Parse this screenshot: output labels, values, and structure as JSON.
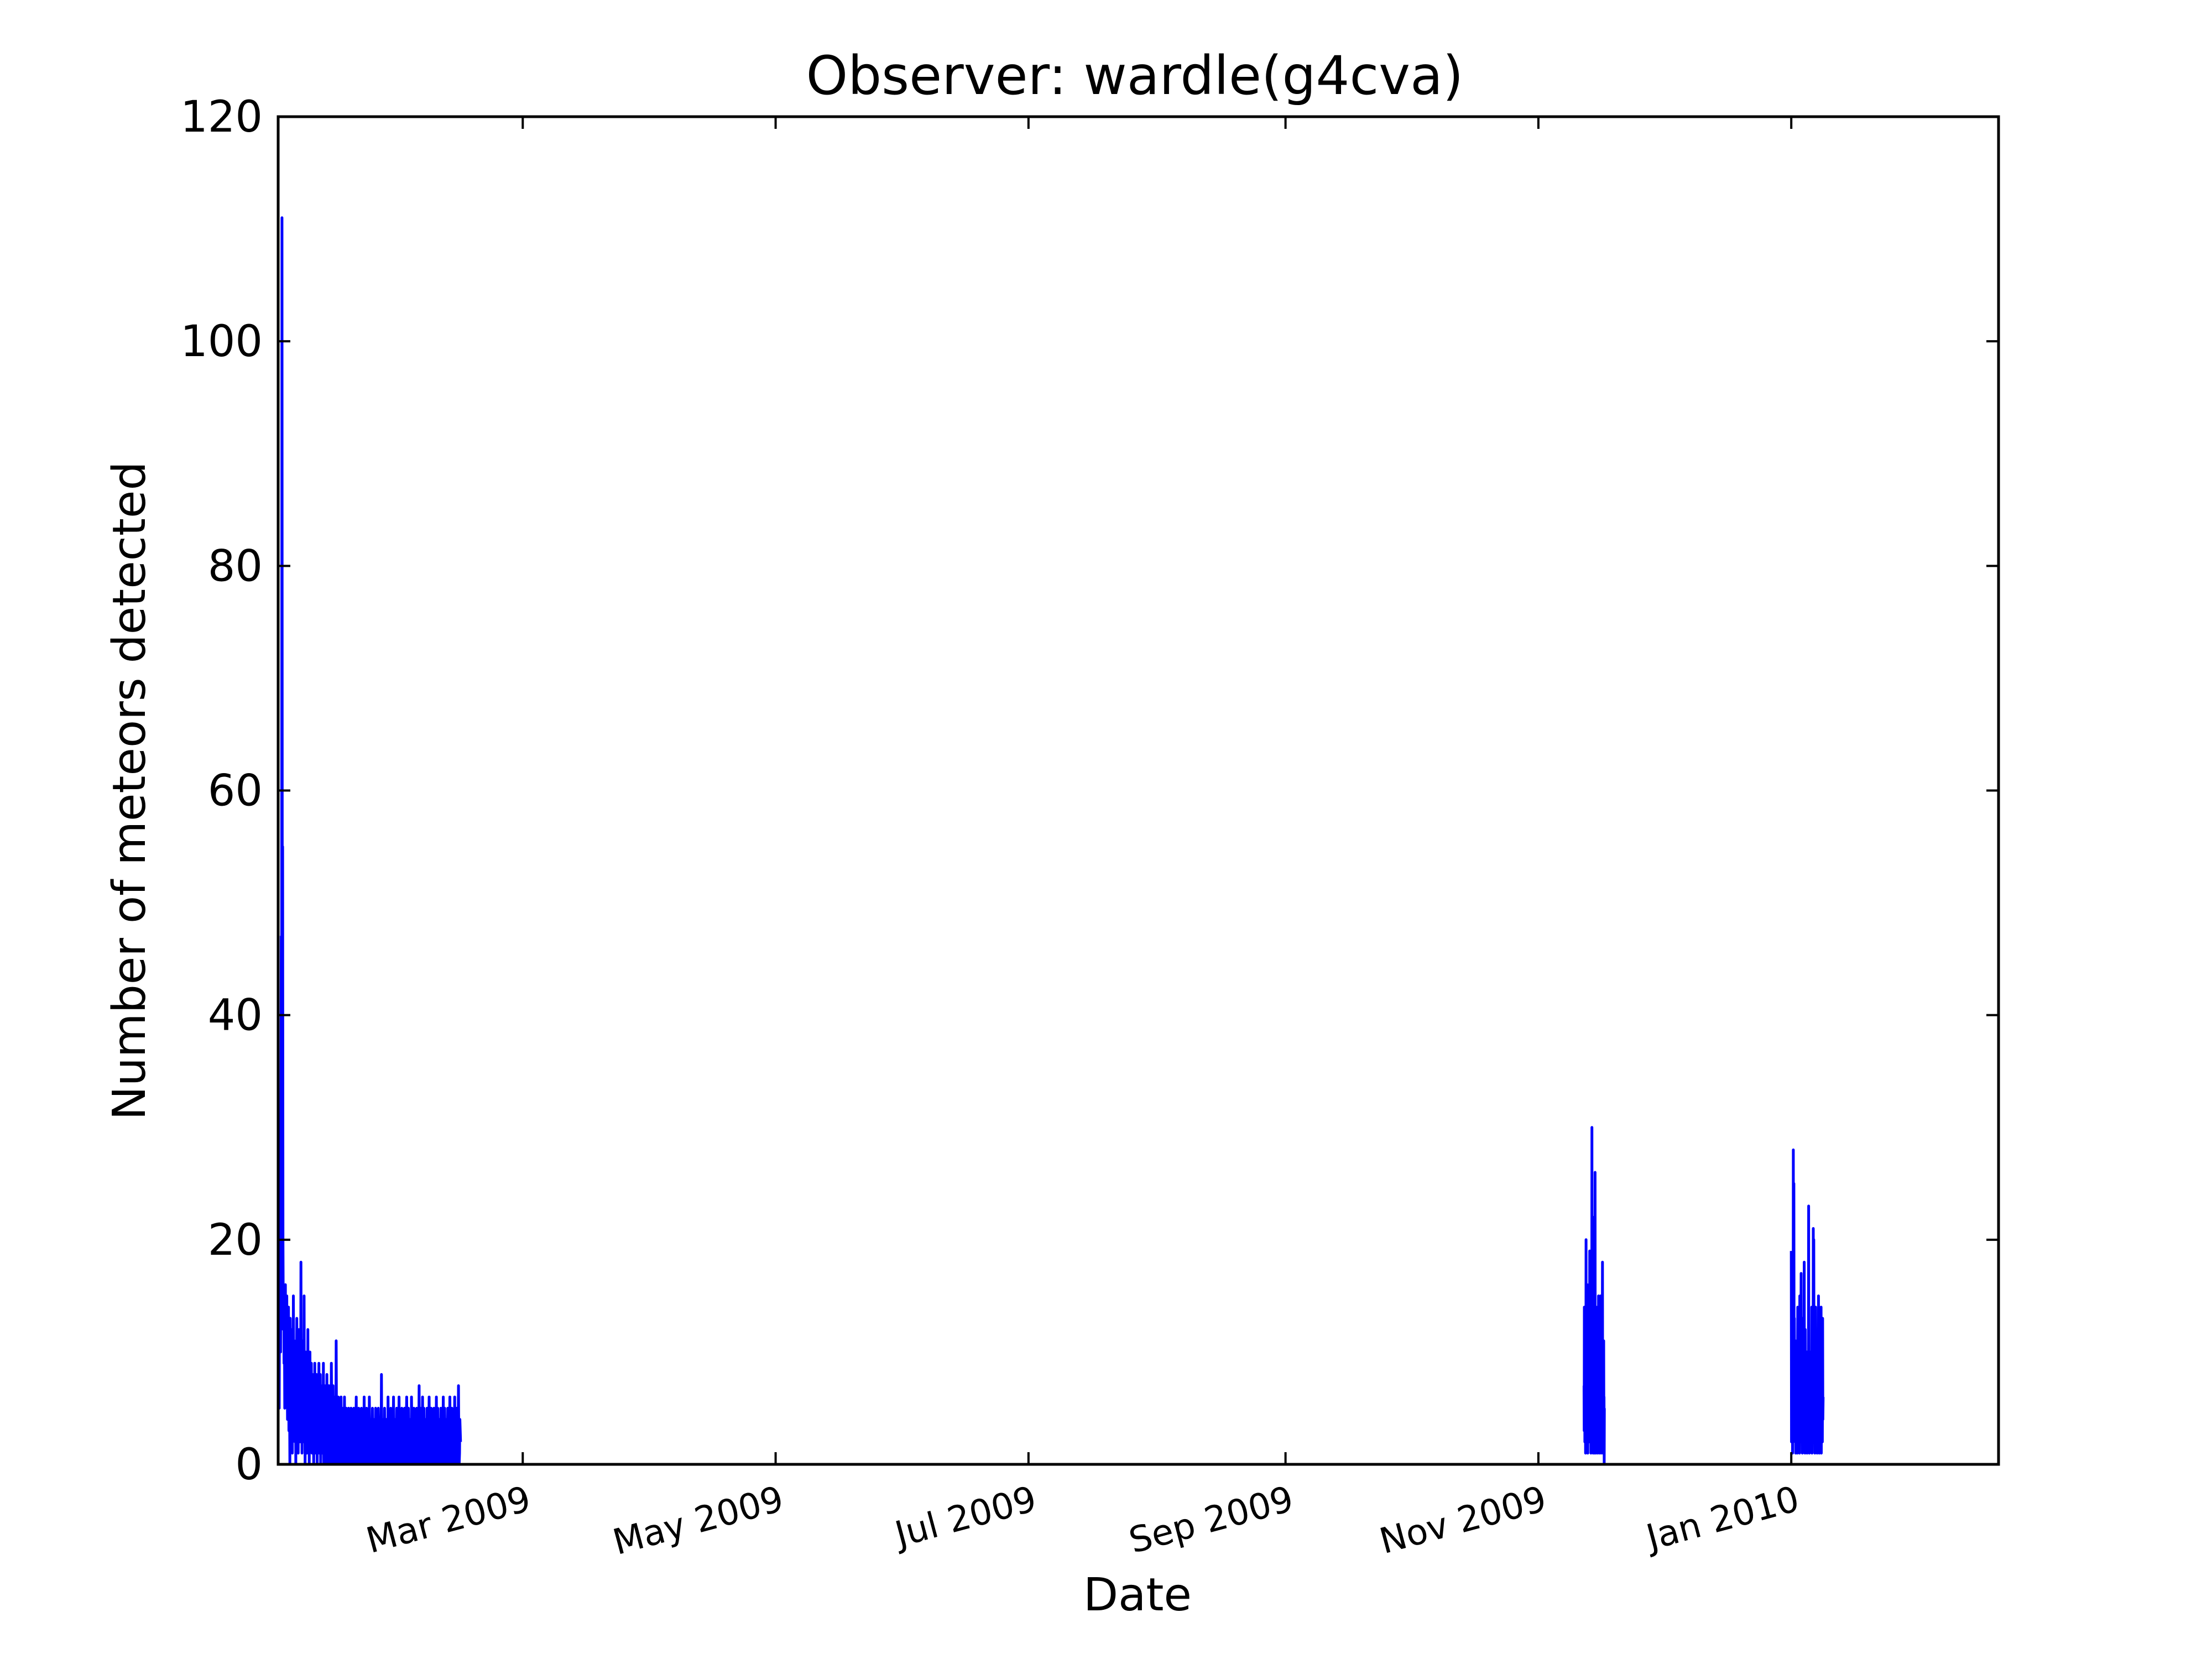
{
  "chart_data": {
    "type": "line",
    "title": "Observer: wardle(g4cva)",
    "xlabel": "Date",
    "ylabel": "Number of meteors detected",
    "x_is_date": true,
    "xlim": [
      "2009-01-01",
      "2010-02-20"
    ],
    "ylim": [
      0,
      120
    ],
    "yticks": [
      0,
      20,
      40,
      60,
      80,
      100,
      120
    ],
    "xticks": [
      {
        "date": "2009-03-01",
        "label": "Mar 2009"
      },
      {
        "date": "2009-05-01",
        "label": "May 2009"
      },
      {
        "date": "2009-07-01",
        "label": "Jul 2009"
      },
      {
        "date": "2009-09-01",
        "label": "Sep 2009"
      },
      {
        "date": "2009-11-01",
        "label": "Nov 2009"
      },
      {
        "date": "2010-01-01",
        "label": "Jan 2010"
      }
    ],
    "grid": false,
    "legend": "none",
    "series": [
      {
        "color": "#0000ff",
        "segments": [
          {
            "start": "2009-01-01",
            "interval_hours": 2,
            "values": [
              24,
              20,
              15,
              5,
              16,
              22,
              18,
              10,
              30,
              47,
              25,
              111,
              42,
              55,
              20,
              12,
              16,
              9,
              14,
              5,
              11,
              16,
              8,
              13,
              6,
              15,
              9,
              4,
              11,
              7,
              14,
              3,
              10,
              6,
              0,
              13,
              8,
              2,
              9,
              5,
              12,
              1,
              7,
              4,
              15,
              9,
              3,
              11,
              6,
              2,
              10,
              0,
              8,
              5,
              13,
              7,
              3,
              9,
              1,
              6,
              12,
              4,
              8,
              2,
              10,
              5,
              18,
              3,
              7,
              1,
              11,
              6,
              4,
              9,
              2,
              15,
              5,
              8,
              0,
              6,
              10,
              3,
              7,
              1,
              9,
              4,
              12,
              2,
              6,
              8,
              0,
              5,
              10,
              3,
              7,
              2,
              9,
              4,
              1,
              6,
              8,
              3,
              5,
              0,
              7,
              2,
              9,
              4,
              6,
              1,
              3,
              8,
              5,
              0,
              7,
              4,
              2,
              6,
              9,
              1,
              5,
              3,
              8,
              0,
              4,
              7,
              2,
              5,
              1,
              6,
              3,
              9,
              0,
              4,
              2,
              7,
              5,
              1,
              3,
              6,
              0,
              8,
              2,
              4,
              1,
              5,
              3,
              7,
              0,
              2,
              6,
              4,
              1,
              3,
              9,
              5,
              0,
              2,
              4,
              7,
              1,
              3,
              5,
              0,
              6,
              2,
              4,
              1,
              11,
              3,
              5,
              0,
              2,
              4,
              6,
              1,
              3,
              0,
              5,
              2,
              4,
              1,
              6,
              3,
              0,
              2,
              5,
              1,
              4,
              3,
              0,
              2,
              6,
              1,
              4,
              0,
              3,
              5,
              2,
              1,
              4,
              0,
              3,
              2,
              5,
              1,
              0,
              3,
              4,
              2,
              1,
              5,
              0,
              3,
              2,
              4,
              1,
              0,
              3,
              5,
              2,
              1,
              4,
              0,
              2,
              3,
              6,
              1,
              0,
              4,
              2,
              3,
              1,
              5,
              0,
              2,
              4,
              3,
              1,
              0,
              2,
              5,
              3,
              1,
              4,
              0,
              2,
              3,
              1,
              6,
              0,
              2,
              4,
              1,
              3,
              0,
              5,
              2,
              1,
              3,
              4,
              0,
              2,
              1,
              6,
              3,
              0,
              2,
              4,
              1,
              3,
              0,
              2,
              5,
              1,
              3,
              0,
              4,
              2,
              1,
              3,
              0,
              5,
              2,
              1,
              4,
              3,
              0,
              2,
              1,
              5,
              3,
              0,
              2,
              4,
              1,
              3,
              0,
              2,
              8,
              1,
              3,
              0,
              2,
              4,
              1,
              3,
              0,
              5,
              2,
              1,
              3,
              0,
              4,
              2,
              1,
              3,
              0,
              6,
              2,
              1,
              4,
              0,
              3,
              2,
              1,
              5,
              0,
              3,
              2,
              4,
              1,
              0,
              3,
              6,
              2,
              1,
              0,
              4,
              3,
              1,
              2,
              0,
              5,
              3,
              1,
              2,
              0,
              4,
              3,
              6,
              2,
              0,
              1,
              4,
              3,
              0,
              2,
              5,
              1,
              0,
              3,
              4,
              2,
              1,
              0,
              5,
              3,
              2,
              1,
              0,
              4,
              6,
              2,
              1,
              0,
              3,
              5,
              2,
              1,
              0,
              4,
              3,
              2,
              1,
              0,
              6,
              3,
              2,
              1,
              0,
              4,
              2,
              5,
              1,
              0,
              3,
              2,
              4,
              1,
              0,
              5,
              3,
              2,
              1,
              0,
              4,
              3,
              7,
              1,
              0,
              2,
              5,
              3,
              1,
              0,
              4,
              2,
              6,
              1,
              0,
              3,
              5,
              2,
              1,
              0,
              4,
              3,
              2,
              1,
              0,
              5,
              2,
              4,
              1,
              0,
              3,
              6,
              2,
              1,
              0,
              4,
              3,
              5,
              1,
              0,
              2,
              3,
              4,
              1,
              0,
              5,
              2,
              3,
              1,
              0,
              4,
              2,
              6,
              1,
              0,
              3,
              5,
              2,
              1,
              0,
              4,
              3,
              2,
              0,
              1,
              5,
              3,
              2,
              0,
              1,
              4,
              3,
              6,
              0,
              1,
              2,
              5,
              3,
              0,
              1,
              4,
              2,
              3,
              0,
              1,
              5,
              2,
              4,
              0,
              1,
              3,
              6,
              2,
              0,
              1,
              4,
              3,
              5,
              0,
              1,
              2,
              3,
              4,
              0,
              1,
              6,
              2,
              3,
              0,
              1,
              4,
              5,
              2,
              0,
              1,
              3,
              7,
              2,
              0,
              1,
              4,
              3,
              2
            ]
          },
          {
            "start": "2009-11-12",
            "interval_hours": 1,
            "values": [
              7,
              3,
              14,
              5,
              11,
              2,
              9,
              4,
              8,
              1,
              12,
              6,
              20,
              3,
              10,
              5,
              15,
              2,
              8,
              16,
              4,
              11,
              1,
              9,
              6,
              13,
              3,
              7,
              10,
              2,
              5,
              14,
              8,
              19,
              4,
              11,
              2,
              16,
              6,
              9,
              1,
              19,
              5,
              12,
              3,
              8,
              30,
              2,
              10,
              4,
              20,
              7,
              13,
              1,
              9,
              5,
              22,
              3,
              11,
              6,
              8,
              1,
              14,
              4,
              26,
              2,
              10,
              5,
              12,
              1,
              9,
              3,
              14,
              6,
              8,
              2,
              11,
              4,
              7,
              1,
              13,
              5,
              9,
              3,
              15,
              2,
              8,
              6,
              11,
              1,
              10,
              4,
              12,
              3,
              7,
              2,
              15,
              5,
              9,
              1,
              11,
              4,
              8,
              2,
              6,
              3,
              13,
              18,
              5,
              1,
              10,
              3,
              7,
              2,
              11,
              4,
              6,
              0,
              5
            ]
          },
          {
            "start": "2010-01-01",
            "interval_hours": 1.5,
            "values": [
              19,
              2,
              10,
              4,
              14,
              1,
              12,
              6,
              28,
              3,
              25,
              8,
              13,
              5,
              9,
              2,
              11,
              1,
              7,
              4,
              10,
              3,
              8,
              1,
              6,
              14,
              2,
              9,
              5,
              12,
              3,
              7,
              1,
              15,
              4,
              11,
              2,
              8,
              17,
              3,
              10,
              5,
              9,
              1,
              13,
              6,
              8,
              2,
              7,
              4,
              18,
              3,
              9,
              1,
              12,
              5,
              8,
              2,
              6,
              3,
              10,
              1,
              7,
              4,
              9,
              2,
              6,
              23,
              3,
              8,
              1,
              10,
              5,
              7,
              2,
              9,
              4,
              6,
              3,
              14,
              1,
              8,
              5,
              7,
              2,
              21,
              4,
              20,
              6,
              3,
              11,
              1,
              8,
              5,
              14,
              2,
              7,
              10,
              3,
              9,
              1,
              8,
              4,
              11,
              2,
              15,
              5,
              3,
              1,
              9,
              4,
              7,
              2,
              6,
              3,
              14,
              1,
              12,
              5,
              8,
              2,
              13,
              4,
              6
            ]
          }
        ]
      }
    ]
  }
}
